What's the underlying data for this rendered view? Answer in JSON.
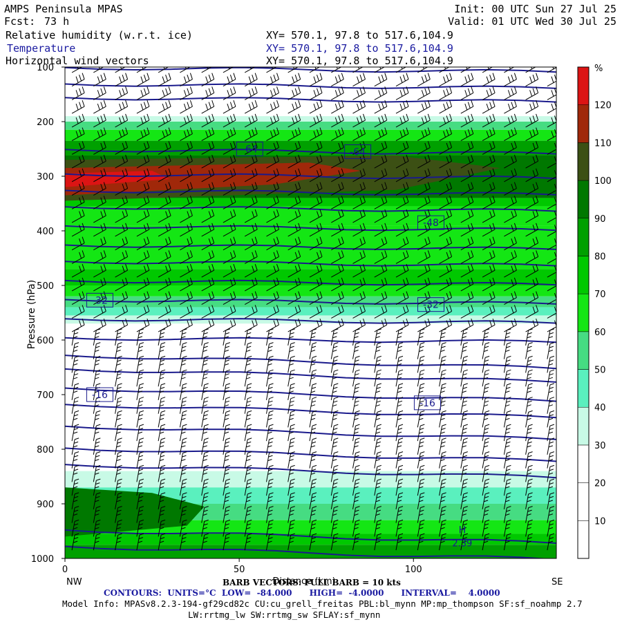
{
  "header": {
    "title": "AMPS Peninsula MPAS",
    "init": "Init: 00 UTC Sun 27 Jul 25",
    "fcst_label": "Fcst:",
    "fcst_hours": "73 h",
    "valid": "Valid: 01 UTC Wed 30 Jul 25",
    "fields": [
      {
        "name": "Relative humidity (w.r.t. ice)",
        "xy": "XY= 570.1, 97.8 to 517.6,104.9"
      },
      {
        "name": "Temperature",
        "xy": "XY= 570.1, 97.8 to 517.6,104.9"
      },
      {
        "name": "Horizontal wind vectors",
        "xy": "XY= 570.1, 97.8 to 517.6,104.9"
      }
    ]
  },
  "chart_data": {
    "type": "heatmap",
    "ylabel": "Pressure (hPa)",
    "xlabel": "Distance (km)",
    "x_ticks": [
      0,
      50,
      100
    ],
    "xlim": [
      0,
      141
    ],
    "y_ticks": [
      100,
      200,
      300,
      400,
      500,
      600,
      700,
      800,
      900,
      1000
    ],
    "ylim": [
      1000,
      100
    ],
    "left_end_label": "NW",
    "right_end_label": "SE",
    "colorbar": {
      "unit": "%",
      "ticks": [
        10,
        20,
        30,
        40,
        50,
        60,
        70,
        80,
        90,
        100,
        110,
        120
      ],
      "levels": [
        0,
        10,
        20,
        30,
        40,
        50,
        60,
        70,
        80,
        90,
        100,
        110,
        120,
        130
      ],
      "colors": [
        "#ffffff",
        "#ffffff",
        "#ffffff",
        "#c8fae6",
        "#5af0be",
        "#46dc82",
        "#14e614",
        "#00c800",
        "#00a000",
        "#007800",
        "#3c5014",
        "#a0280a",
        "#dc1414",
        "#ff0000"
      ]
    },
    "temperature_contours": {
      "units": "°C",
      "low": -84.0,
      "high": -4.0,
      "interval": 4.0,
      "labels": [
        {
          "value": -64,
          "x": 53,
          "p": 250
        },
        {
          "value": -64,
          "x": 84,
          "p": 255
        },
        {
          "value": -48,
          "x": 105,
          "p": 385
        },
        {
          "value": -32,
          "x": 10,
          "p": 527
        },
        {
          "value": -32,
          "x": 105,
          "p": 535
        },
        {
          "value": -16,
          "x": 10,
          "p": 700
        },
        {
          "value": -16,
          "x": 104,
          "p": 715
        }
      ],
      "high_marker": {
        "label": "H",
        "value_text": "2.39",
        "x": 114,
        "p": 960
      }
    },
    "barb_legend": "BARB VECTORS: FULL BARB = 10 kts"
  },
  "footer": {
    "barb": "BARB VECTORS: FULL BARB = 10 kts",
    "contours": "CONTOURS:  UNITS=°C  LOW=  -84.000      HIGH=  -4.0000      INTERVAL=    4.0000",
    "model_info_1": "Model Info: MPASv8.2.3-194-gf29cd82c CU:cu_grell_freitas PBL:bl_mynn MP:mp_thompson SF:sf_noahmp 2.7",
    "model_info_2": "LW:rrtmg_lw SW:rrtmg_sw SFLAY:sf_mynn"
  }
}
